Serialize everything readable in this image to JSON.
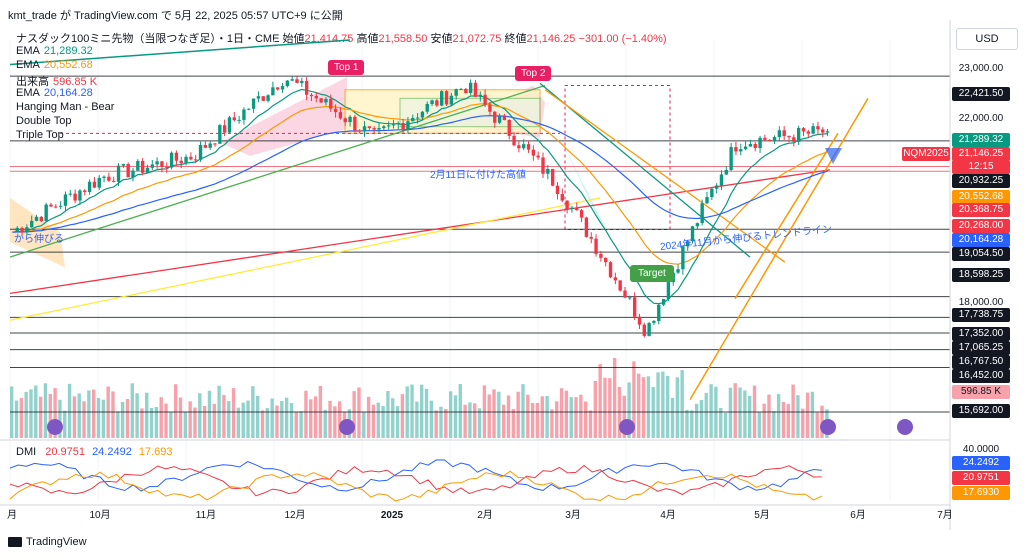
{
  "header": {
    "text": "kmt_trade が TradingView.com で 5月 22, 2025 05:57 UTC+9 に公開"
  },
  "symbol_line": {
    "name": "ナスダック100ミニ先物（当限つなぎ足）・1日・CME",
    "open_label": "始値",
    "open": "21,414.75",
    "high_label": "高値",
    "high": "21,558.50",
    "low_label": "安値",
    "low": "21,072.75",
    "close_label": "終値",
    "close": "21,146.25",
    "change": "−301.00 (−1.40%)"
  },
  "legend": [
    {
      "label": "EMA",
      "value": "21,289.32",
      "color": "#089981"
    },
    {
      "label": "EMA",
      "value": "20,552.68",
      "color": "#ff9800"
    },
    {
      "label": "出来高",
      "value": "596.85 K",
      "color": "#f23645"
    },
    {
      "label": "EMA",
      "value": "20,164.28",
      "color": "#2962ff"
    },
    {
      "label": "Hanging Man - Bear",
      "value": "",
      "color": "#131722"
    },
    {
      "label": "Double Top",
      "value": "",
      "color": "#131722"
    },
    {
      "label": "Triple Top",
      "value": "",
      "color": "#131722"
    }
  ],
  "currency": "USD",
  "annotations": {
    "top1": "Top 1",
    "top2": "Top 2",
    "target": "Target",
    "feb11_high": "2月11日に付けた高値",
    "trendline_1": "から伸びる",
    "trendline_2": "2024年11月から伸びるトレンドライン"
  },
  "colors": {
    "up": "#089981",
    "down": "#f23645",
    "ema_green": "#089981",
    "ema_orange": "#ff9800",
    "ema_blue": "#2962ff",
    "accent_pink": "#e91e63",
    "target_green": "#43a047"
  },
  "chart_data": [
    {
      "type": "candlestick",
      "title": "ナスダック100ミニ先物（当限つなぎ足）・1日・CME",
      "x_tick_labels": [
        "月",
        "10月",
        "11月",
        "12月",
        "2025",
        "2月",
        "3月",
        "4月",
        "5月",
        "6月",
        "7月"
      ],
      "y_tick_labels": [
        "23,000.00",
        "22,000.00",
        "18,000.00",
        "40.0000"
      ],
      "ylim": [
        15692,
        23300
      ],
      "y_scale": "log",
      "last_values": {
        "open": 21414.75,
        "high": 21558.5,
        "low": 21072.75,
        "close": 21146.25
      },
      "approx_close_path": [
        {
          "month": "9月",
          "close": 19000
        },
        {
          "month": "10月",
          "close": 20150
        },
        {
          "month": "11月",
          "close": 20600
        },
        {
          "month": "12月",
          "close": 22400
        },
        {
          "month": "2025",
          "close": 21000
        },
        {
          "month": "2月",
          "close": 22200
        },
        {
          "month": "3月",
          "close": 20000
        },
        {
          "month": "4月",
          "close": 17100
        },
        {
          "month": "5月",
          "close": 20900
        },
        {
          "month": "5月末",
          "close": 21146
        }
      ],
      "price_levels": [
        {
          "label": "22,421.50",
          "bg": "#131722",
          "fg": "#ffffff"
        },
        {
          "label": "21,289.32",
          "bg": "#089981",
          "fg": "#ffffff"
        },
        {
          "label": "21,146.25",
          "bg": "#f23645",
          "fg": "#ffffff",
          "sub": "12:15",
          "tag": "NQM2025"
        },
        {
          "label": "20,932.25",
          "bg": "#131722",
          "fg": "#ffffff"
        },
        {
          "label": "20,552.68",
          "bg": "#ff9800",
          "fg": "#ffffff"
        },
        {
          "label": "20,368.75",
          "bg": "#f23645",
          "fg": "#ffffff"
        },
        {
          "label": "20,268.00",
          "bg": "#f23645",
          "fg": "#ffffff"
        },
        {
          "label": "20,164.28",
          "bg": "#2962ff",
          "fg": "#ffffff"
        },
        {
          "label": "19,054.50",
          "bg": "#131722",
          "fg": "#ffffff"
        },
        {
          "label": "18,598.25",
          "bg": "#131722",
          "fg": "#ffffff"
        },
        {
          "label": "17,738.75",
          "bg": "#131722",
          "fg": "#ffffff"
        },
        {
          "label": "17,352.00",
          "bg": "#131722",
          "fg": "#ffffff"
        },
        {
          "label": "17,065.25",
          "bg": "#131722",
          "fg": "#ffffff"
        },
        {
          "label": "16,767.50",
          "bg": "#131722",
          "fg": "#ffffff"
        },
        {
          "label": "16,452.00",
          "bg": "#131722",
          "fg": "#ffffff"
        },
        {
          "label": "596.85 K",
          "bg": "#f7a1aa",
          "fg": "#131722"
        },
        {
          "label": "15,692.00",
          "bg": "#131722",
          "fg": "#ffffff"
        }
      ]
    },
    {
      "type": "line",
      "title": "DMI",
      "series": [
        {
          "name": "+DI",
          "value": 20.9751,
          "color": "#f23645"
        },
        {
          "name": "−DI",
          "value": 24.2492,
          "color": "#2962ff"
        },
        {
          "name": "ADX",
          "value": 17.693,
          "color": "#ff9800"
        }
      ],
      "axis_label": "40.0000",
      "value_labels": [
        {
          "label": "24.2492",
          "bg": "#2962ff",
          "fg": "#ffffff"
        },
        {
          "label": "20.9751",
          "bg": "#f23645",
          "fg": "#ffffff"
        },
        {
          "label": "17.6930",
          "bg": "#ff9800",
          "fg": "#ffffff"
        }
      ]
    }
  ],
  "footer": {
    "brand": "TradingView"
  }
}
